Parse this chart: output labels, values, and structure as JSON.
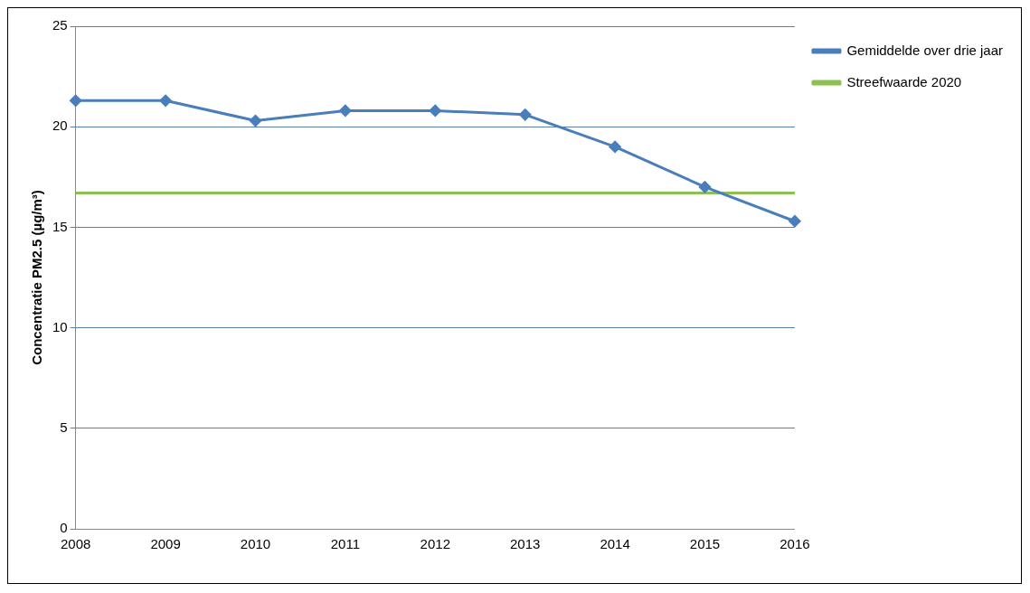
{
  "chart_data": {
    "type": "line",
    "ylabel": "Concentratie PM2.5 (µg/m³)",
    "categories": [
      "2008",
      "2009",
      "2010",
      "2011",
      "2012",
      "2013",
      "2014",
      "2015",
      "2016"
    ],
    "series": [
      {
        "name": "Gemiddelde over drie jaar",
        "color": "#4a7ebb",
        "marker": "diamond",
        "values": [
          21.3,
          21.3,
          20.3,
          20.8,
          20.8,
          20.6,
          19.0,
          17.0,
          15.3
        ]
      },
      {
        "name": "Streefwaarde 2020",
        "color": "#8cc152",
        "marker": "none",
        "values": [
          16.7,
          16.7,
          16.7,
          16.7,
          16.7,
          16.7,
          16.7,
          16.7,
          16.7
        ]
      }
    ],
    "ylim": [
      0,
      25
    ],
    "yticks": [
      0,
      5,
      10,
      15,
      20,
      25
    ],
    "grid": "y",
    "legend": "right"
  }
}
